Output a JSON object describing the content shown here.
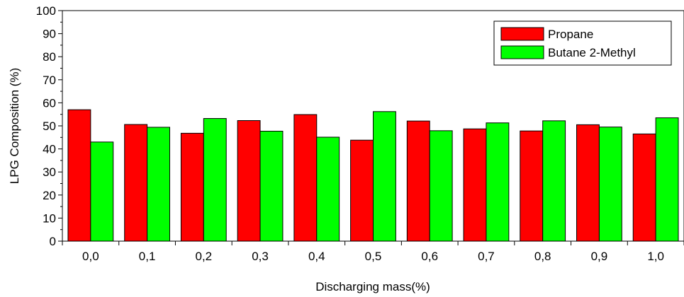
{
  "chart_data": {
    "type": "bar",
    "title": "",
    "xlabel": "Discharging mass(%)",
    "ylabel": "LPG Composition (%)",
    "ylim": [
      0,
      100
    ],
    "yticks": [
      "0",
      "10",
      "20",
      "30",
      "40",
      "50",
      "60",
      "70",
      "80",
      "90",
      "100"
    ],
    "categories": [
      "0,0",
      "0,1",
      "0,2",
      "0,3",
      "0,4",
      "0,5",
      "0,6",
      "0,7",
      "0,8",
      "0,9",
      "1,0"
    ],
    "series": [
      {
        "name": "Propane",
        "color": "#ff0000",
        "values": [
          57.0,
          50.6,
          46.8,
          52.3,
          54.9,
          43.8,
          52.1,
          48.7,
          47.8,
          50.5,
          46.5
        ]
      },
      {
        "name": "Butane 2-Methyl",
        "color": "#00ff00",
        "values": [
          43.0,
          49.4,
          53.2,
          47.7,
          45.1,
          56.2,
          47.9,
          51.3,
          52.2,
          49.5,
          53.5
        ]
      }
    ],
    "grid": false,
    "legend_position": "top-right"
  }
}
